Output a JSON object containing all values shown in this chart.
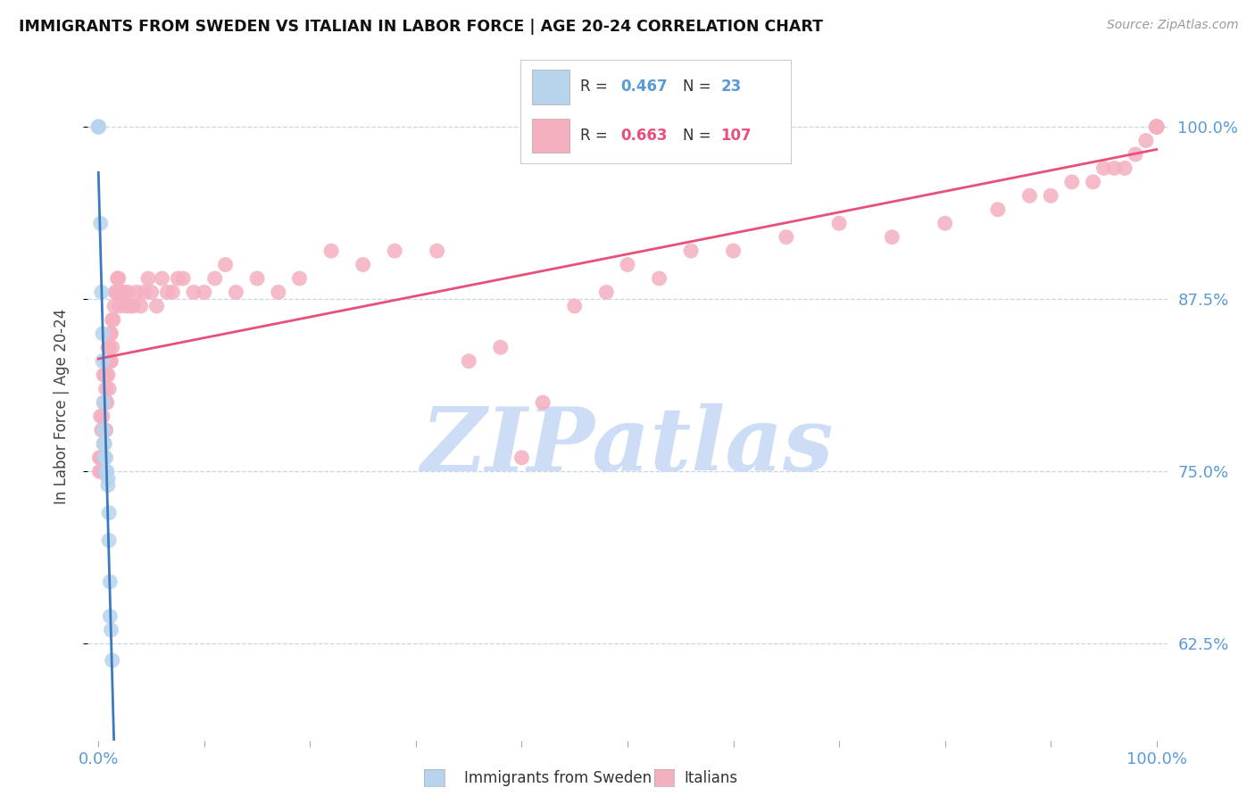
{
  "title": "IMMIGRANTS FROM SWEDEN VS ITALIAN IN LABOR FORCE | AGE 20-24 CORRELATION CHART",
  "source": "Source: ZipAtlas.com",
  "ylabel": "In Labor Force | Age 20-24",
  "legend_sweden": "Immigrants from Sweden",
  "legend_italian": "Italians",
  "sweden_R": 0.467,
  "sweden_N": 23,
  "italian_R": 0.663,
  "italian_N": 107,
  "sweden_fill": "#b8d4ec",
  "italian_fill": "#f5b0c0",
  "sweden_line": "#3a7abf",
  "italian_line": "#e8507a",
  "text_blue": "#5b9bd5",
  "bg": "#ffffff",
  "watermark": "#ccddf5",
  "xlim": [
    -0.01,
    1.01
  ],
  "ylim": [
    0.555,
    1.04
  ],
  "yticks": [
    0.625,
    0.75,
    0.875,
    1.0
  ],
  "ytick_labels": [
    "62.5%",
    "75.0%",
    "87.5%",
    "100.0%"
  ],
  "sweden_x": [
    0.0,
    0.0,
    0.0,
    0.002,
    0.003,
    0.004,
    0.004,
    0.005,
    0.005,
    0.005,
    0.006,
    0.006,
    0.007,
    0.007,
    0.008,
    0.009,
    0.009,
    0.01,
    0.01,
    0.011,
    0.011,
    0.012,
    0.013
  ],
  "sweden_y": [
    1.0,
    1.0,
    1.0,
    0.93,
    0.88,
    0.85,
    0.83,
    0.8,
    0.78,
    0.77,
    0.77,
    0.76,
    0.76,
    0.75,
    0.75,
    0.745,
    0.74,
    0.72,
    0.7,
    0.67,
    0.645,
    0.635,
    0.613
  ],
  "italian_x": [
    0.001,
    0.001,
    0.002,
    0.002,
    0.003,
    0.003,
    0.003,
    0.004,
    0.004,
    0.004,
    0.005,
    0.005,
    0.005,
    0.005,
    0.006,
    0.006,
    0.006,
    0.007,
    0.007,
    0.007,
    0.008,
    0.008,
    0.008,
    0.009,
    0.009,
    0.01,
    0.01,
    0.01,
    0.011,
    0.011,
    0.012,
    0.012,
    0.013,
    0.013,
    0.014,
    0.015,
    0.016,
    0.017,
    0.018,
    0.019,
    0.02,
    0.022,
    0.024,
    0.026,
    0.028,
    0.03,
    0.033,
    0.036,
    0.04,
    0.043,
    0.047,
    0.05,
    0.055,
    0.06,
    0.065,
    0.07,
    0.075,
    0.08,
    0.09,
    0.1,
    0.11,
    0.12,
    0.13,
    0.15,
    0.17,
    0.19,
    0.22,
    0.25,
    0.28,
    0.32,
    0.35,
    0.38,
    0.4,
    0.42,
    0.45,
    0.48,
    0.5,
    0.53,
    0.56,
    0.6,
    0.65,
    0.7,
    0.75,
    0.8,
    0.85,
    0.88,
    0.9,
    0.92,
    0.94,
    0.95,
    0.96,
    0.97,
    0.98,
    0.99,
    1.0,
    1.0,
    1.0,
    1.0,
    1.0,
    1.0,
    1.0,
    1.0,
    1.0,
    1.0,
    1.0,
    1.0,
    1.0
  ],
  "italian_y": [
    0.76,
    0.75,
    0.79,
    0.76,
    0.78,
    0.76,
    0.75,
    0.79,
    0.78,
    0.76,
    0.82,
    0.8,
    0.78,
    0.77,
    0.82,
    0.8,
    0.78,
    0.81,
    0.8,
    0.78,
    0.83,
    0.82,
    0.8,
    0.84,
    0.82,
    0.84,
    0.83,
    0.81,
    0.85,
    0.83,
    0.85,
    0.83,
    0.86,
    0.84,
    0.86,
    0.87,
    0.88,
    0.88,
    0.89,
    0.89,
    0.87,
    0.88,
    0.88,
    0.87,
    0.88,
    0.87,
    0.87,
    0.88,
    0.87,
    0.88,
    0.89,
    0.88,
    0.87,
    0.89,
    0.88,
    0.88,
    0.89,
    0.89,
    0.88,
    0.88,
    0.89,
    0.9,
    0.88,
    0.89,
    0.88,
    0.89,
    0.91,
    0.9,
    0.91,
    0.91,
    0.83,
    0.84,
    0.76,
    0.8,
    0.87,
    0.88,
    0.9,
    0.89,
    0.91,
    0.91,
    0.92,
    0.93,
    0.92,
    0.93,
    0.94,
    0.95,
    0.95,
    0.96,
    0.96,
    0.97,
    0.97,
    0.97,
    0.98,
    0.99,
    1.0,
    1.0,
    1.0,
    1.0,
    1.0,
    1.0,
    1.0,
    1.0,
    1.0,
    1.0,
    1.0,
    1.0,
    1.0
  ],
  "n_xticks": 10
}
